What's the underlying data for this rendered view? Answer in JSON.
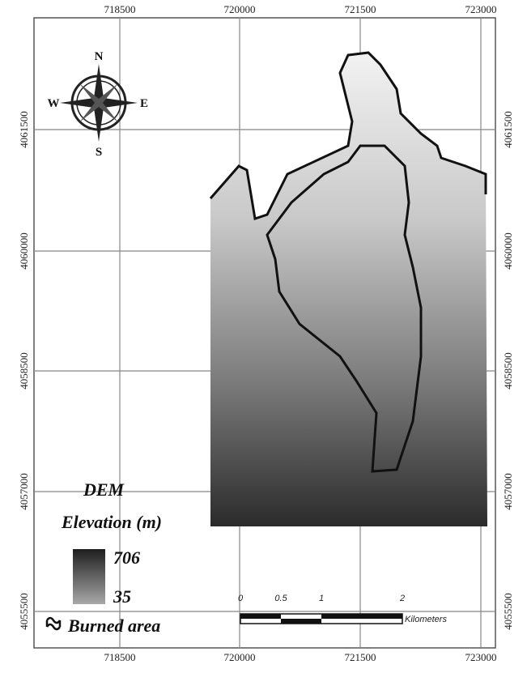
{
  "map": {
    "x_labels": [
      718500,
      720000,
      721500,
      723000
    ],
    "y_labels": [
      4061500,
      4060000,
      4058500,
      4057000,
      4055500
    ],
    "compass": {
      "n": "N",
      "s": "S",
      "e": "E",
      "w": "W"
    },
    "legend": {
      "title": "DEM",
      "subtitle": "Elevation (m)",
      "max": 706,
      "min": 35,
      "burned_area": "Burned area"
    },
    "scale_bar": {
      "ticks": [
        0,
        0.5,
        1,
        2
      ],
      "unit": "Kilometers"
    }
  }
}
